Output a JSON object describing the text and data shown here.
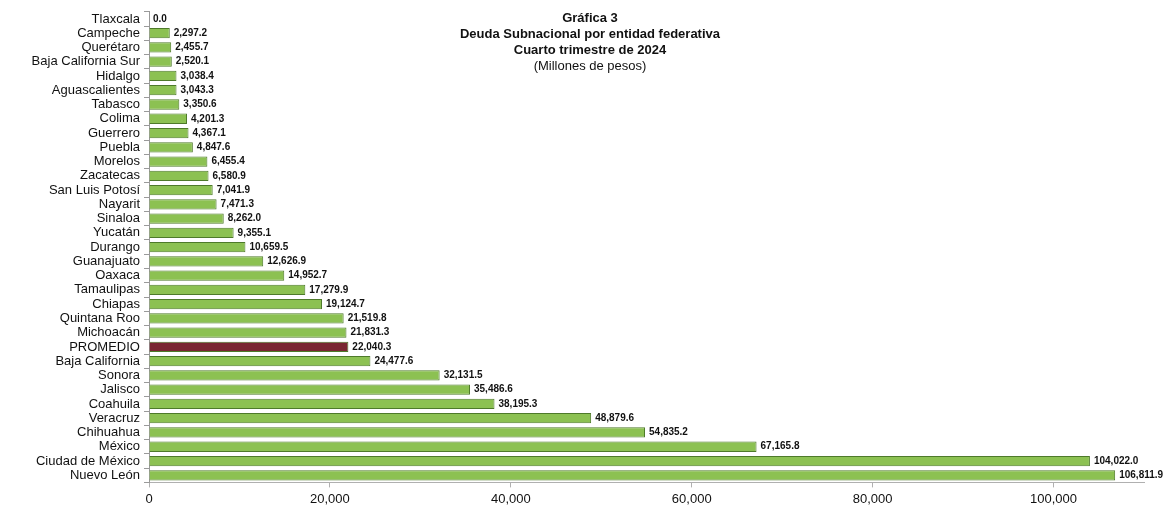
{
  "chart_data": {
    "type": "bar",
    "orientation": "horizontal",
    "title": "Gráfica 3\nDeuda Subnacional por entidad federativa\nCuarto trimestre de 2024",
    "subtitle": "(Millones de pesos)",
    "categories": [
      "Tlaxcala",
      "Campeche",
      "Querétaro",
      "Baja California Sur",
      "Hidalgo",
      "Aguascalientes",
      "Tabasco",
      "Colima",
      "Guerrero",
      "Puebla",
      "Morelos",
      "Zacatecas",
      "San Luis Potosí",
      "Nayarit",
      "Sinaloa",
      "Yucatán",
      "Durango",
      "Guanajuato",
      "Oaxaca",
      "Tamaulipas",
      "Chiapas",
      "Quintana Roo",
      "Michoacán",
      "PROMEDIO",
      "Baja California",
      "Sonora",
      "Jalisco",
      "Coahuila",
      "Veracruz",
      "Chihuahua",
      "México",
      "Ciudad de México",
      "Nuevo León"
    ],
    "values": [
      0.0,
      2297.2,
      2455.7,
      2520.1,
      3038.4,
      3043.3,
      3350.6,
      4201.3,
      4367.1,
      4847.6,
      6455.4,
      6580.9,
      7041.9,
      7471.3,
      8262.0,
      9355.1,
      10659.5,
      12626.9,
      14952.7,
      17279.9,
      19124.7,
      21519.8,
      21831.3,
      22040.3,
      24477.6,
      32131.5,
      35486.6,
      38195.3,
      48879.6,
      54835.2,
      67165.8,
      104022.0,
      106811.9
    ],
    "value_labels": [
      "0.0",
      "2,297.2",
      "2,455.7",
      "2,520.1",
      "3,038.4",
      "3,043.3",
      "3,350.6",
      "4,201.3",
      "4,367.1",
      "4,847.6",
      "6,455.4",
      "6,580.9",
      "7,041.9",
      "7,471.3",
      "8,262.0",
      "9,355.1",
      "10,659.5",
      "12,626.9",
      "14,952.7",
      "17,279.9",
      "19,124.7",
      "21,519.8",
      "21,831.3",
      "22,040.3",
      "24,477.6",
      "32,131.5",
      "35,486.6",
      "38,195.3",
      "48,879.6",
      "54,835.2",
      "67,165.8",
      "104,022.0",
      "106,811.9"
    ],
    "colors": [
      "#8cc152",
      "#8cc152",
      "#8cc152",
      "#8cc152",
      "#8cc152",
      "#8cc152",
      "#8cc152",
      "#8cc152",
      "#8cc152",
      "#8cc152",
      "#8cc152",
      "#8cc152",
      "#8cc152",
      "#8cc152",
      "#8cc152",
      "#8cc152",
      "#8cc152",
      "#8cc152",
      "#8cc152",
      "#8cc152",
      "#8cc152",
      "#8cc152",
      "#8cc152",
      "#7a2631",
      "#8cc152",
      "#8cc152",
      "#8cc152",
      "#8cc152",
      "#8cc152",
      "#8cc152",
      "#8cc152",
      "#8cc152",
      "#8cc152"
    ],
    "xlim": [
      0,
      110000
    ],
    "xticks": [
      0,
      {
        "value": 20000,
        "label": "20,000"
      },
      {
        "value": 40000,
        "label": "40,000"
      },
      {
        "value": 60000,
        "label": "60,000"
      },
      {
        "value": 80000,
        "label": "80,000"
      },
      {
        "value": 100000,
        "label": "100,000"
      }
    ],
    "grid": false,
    "legend": false
  }
}
